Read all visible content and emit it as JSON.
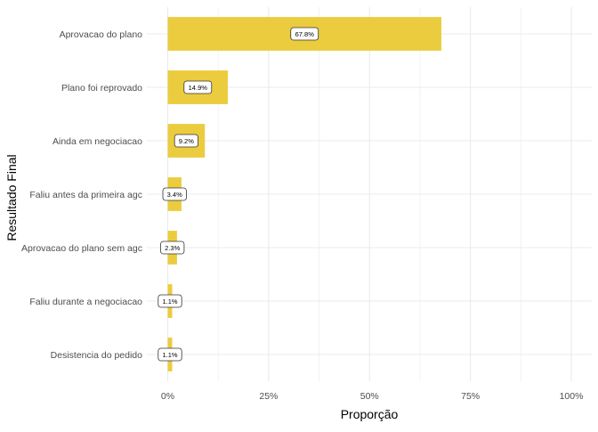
{
  "chart_data": {
    "type": "bar",
    "orientation": "horizontal",
    "categories": [
      "Aprovacao do plano",
      "Plano foi reprovado",
      "Ainda em negociacao",
      "Faliu antes da primeira agc",
      "Aprovacao do plano sem agc",
      "Faliu durante a negociacao",
      "Desistencia do pedido"
    ],
    "values": [
      0.678,
      0.149,
      0.092,
      0.034,
      0.023,
      0.011,
      0.011
    ],
    "data_labels": [
      "67.8%",
      "14.9%",
      "9.2%",
      "3.4%",
      "2.3%",
      "1.1%",
      "1.1%"
    ],
    "xlabel": "Proporção",
    "ylabel": "Resultado Final",
    "xlim": [
      0,
      1
    ],
    "x_ticks": [
      0,
      0.25,
      0.5,
      0.75,
      1
    ],
    "x_tick_labels": [
      "0%",
      "25%",
      "50%",
      "75%",
      "100%"
    ],
    "grid": true,
    "legend": "none",
    "bar_color": "#EBCC3E",
    "grid_color": "#EBEBEB",
    "text_color": "#4D4D4D"
  }
}
